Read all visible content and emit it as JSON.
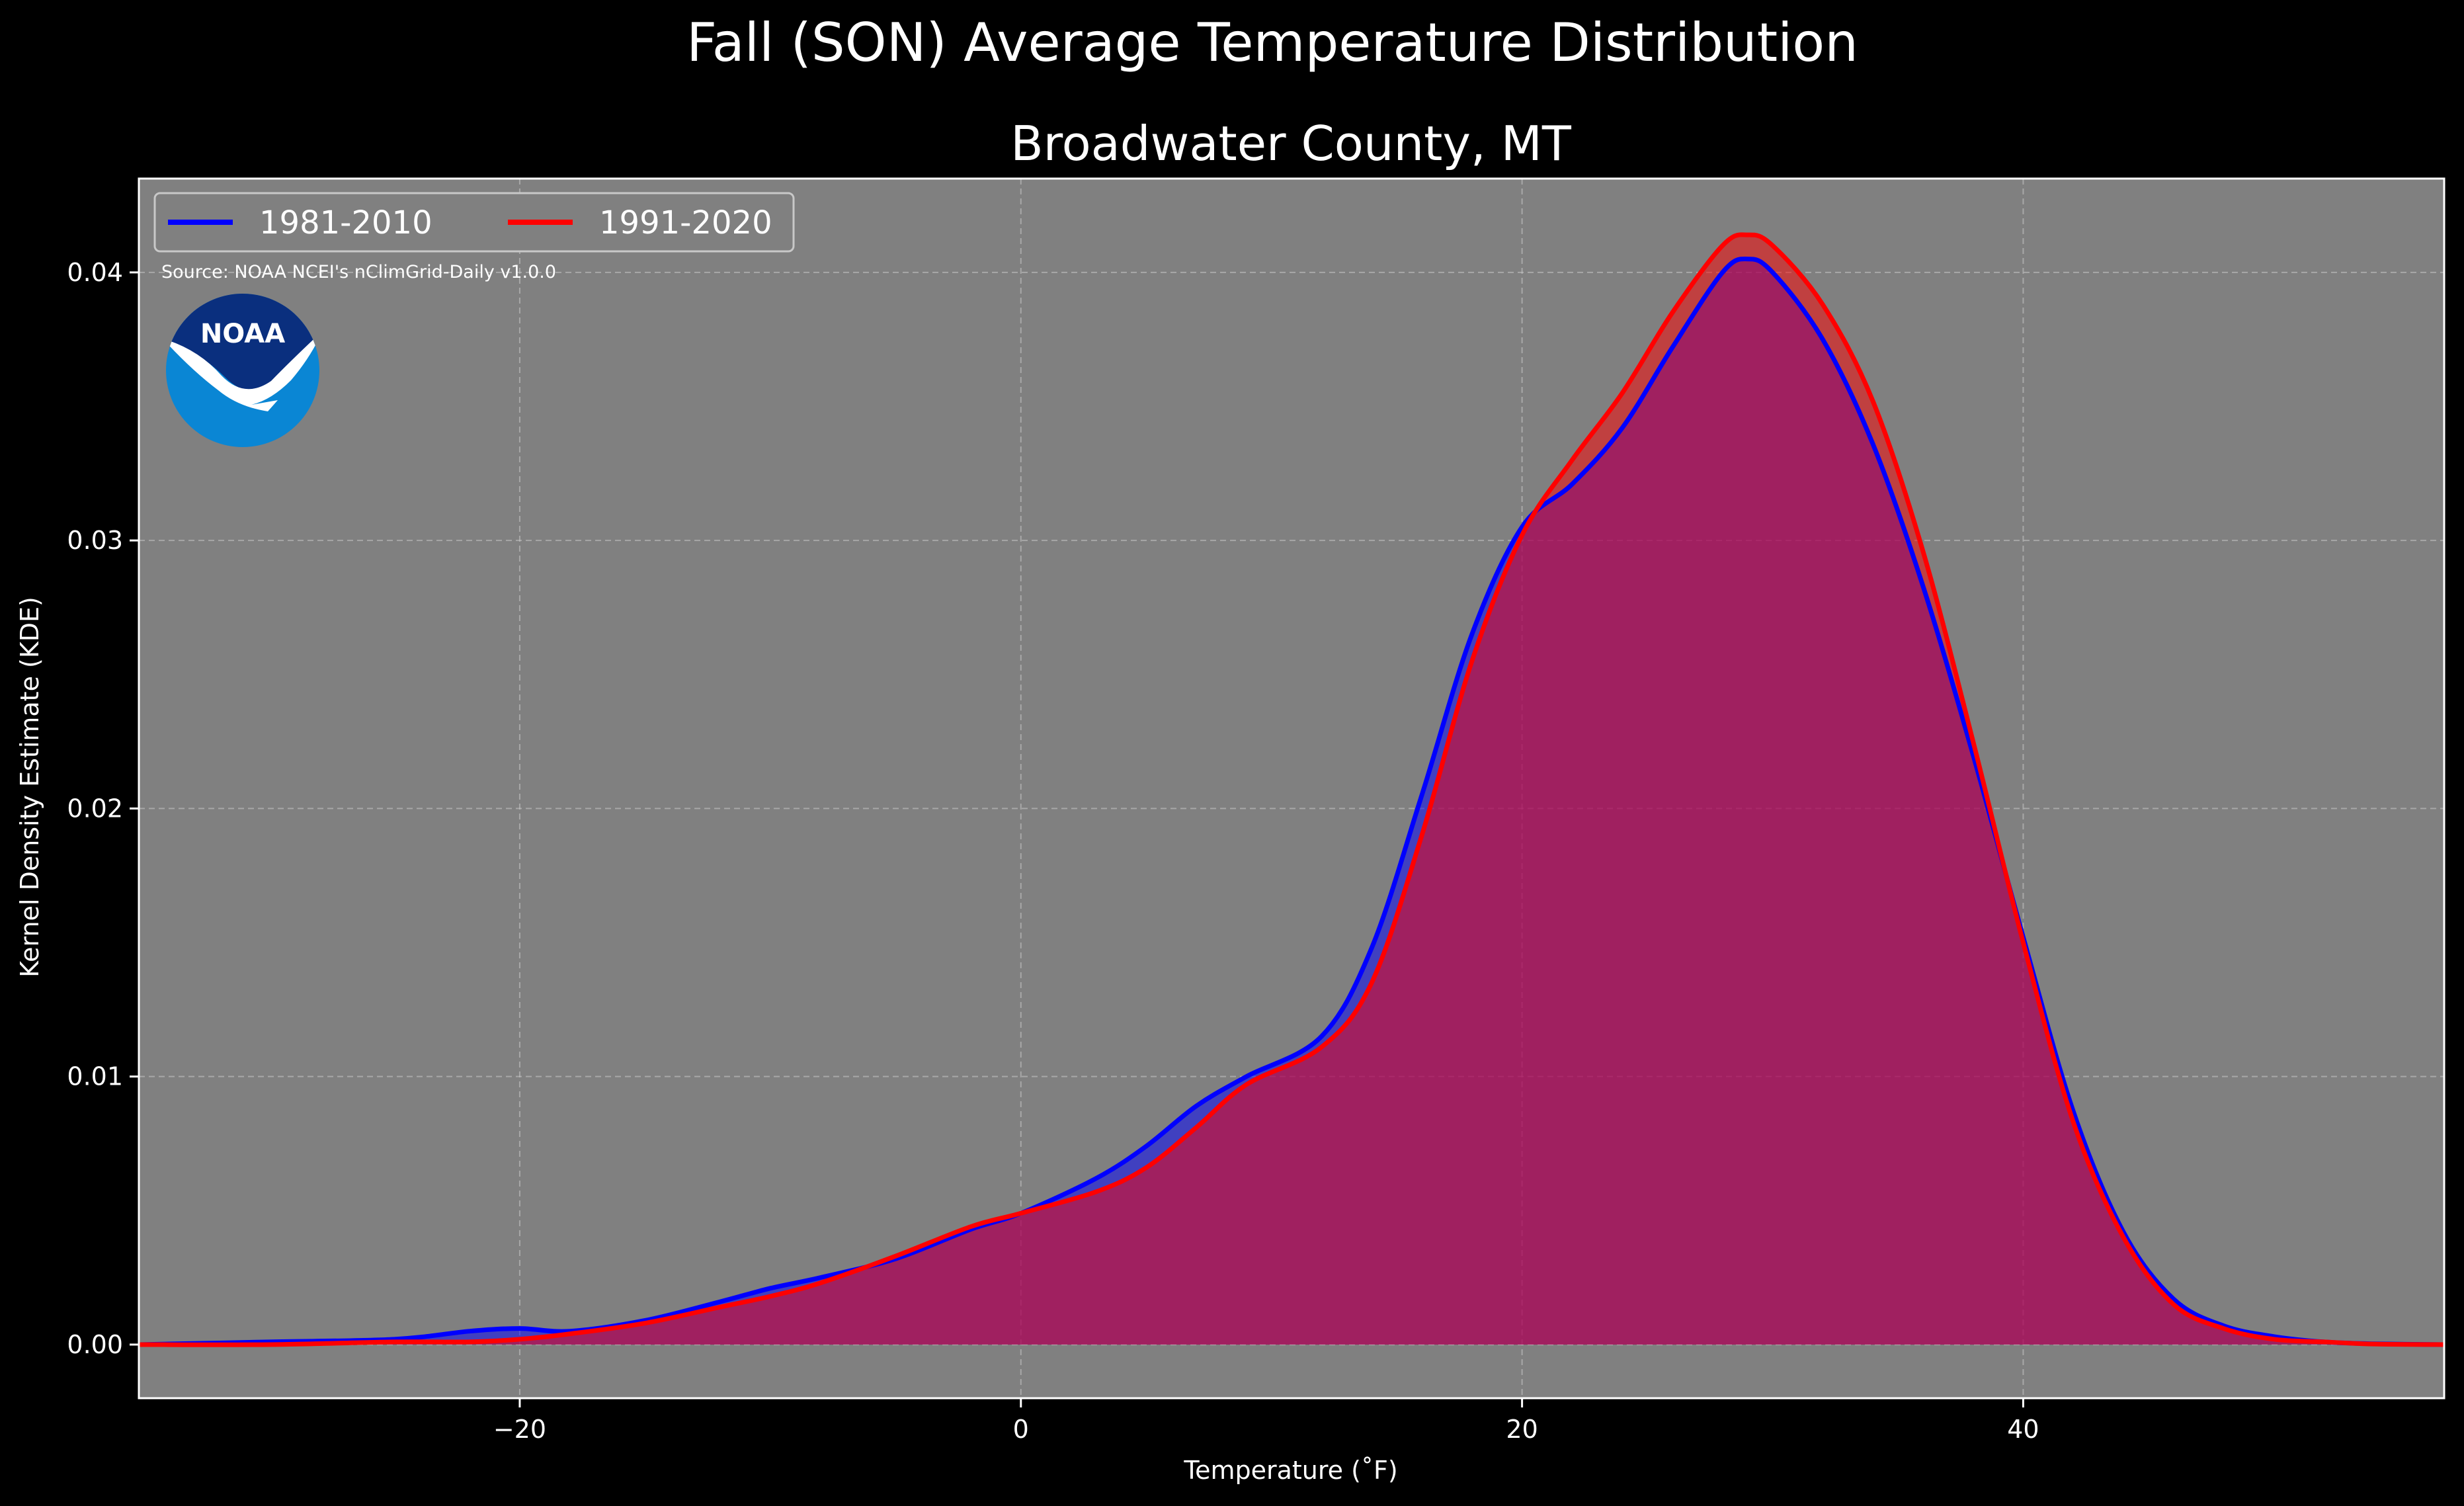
{
  "figure": {
    "suptitle": "Fall (SON) Average Temperature Distribution",
    "background": "#000000",
    "plot_background": "#808080"
  },
  "source_note": "Source: NOAA NCEI's nClimGrid-Daily v1.0.0",
  "logo": {
    "text": "NOAA",
    "icon": "noaa-logo-icon",
    "colors": {
      "top": "#0a2f7e",
      "bottom": "#0a86d4",
      "bird": "#ffffff"
    }
  },
  "chart_data": {
    "type": "area",
    "title": "Broadwater County, MT",
    "xlabel": "Temperature ($^\\circ$F)",
    "xlabel_display": "Temperature (˚F)",
    "ylabel": "Kernel Density Estimate (KDE)",
    "xlim": [
      -35.2,
      56.8
    ],
    "ylim": [
      -0.002,
      0.0435
    ],
    "xticks": [
      -20,
      0,
      20,
      40
    ],
    "xtick_labels": [
      "−20",
      "0",
      "20",
      "40"
    ],
    "yticks": [
      0.0,
      0.01,
      0.02,
      0.03,
      0.04
    ],
    "ytick_labels": [
      "0.00",
      "0.01",
      "0.02",
      "0.03",
      "0.04"
    ],
    "grid": true,
    "legend": {
      "location": "top-left",
      "ncol": 2
    },
    "series": [
      {
        "name": "1981-2010",
        "color": "#0000ff",
        "fill_opacity": 0.5,
        "x": [
          -35.2,
          -30,
          -25,
          -22,
          -20,
          -18,
          -15,
          -12,
          -10,
          -8,
          -5,
          -2,
          0,
          3,
          5,
          7,
          9,
          12,
          14,
          16,
          18,
          20,
          22,
          24,
          26,
          28,
          29,
          30,
          32,
          34,
          36,
          38,
          40,
          42,
          44,
          46,
          48,
          50,
          52,
          54,
          56.8
        ],
        "y": [
          0.0,
          0.0001,
          0.0002,
          0.0005,
          0.0006,
          0.0005,
          0.0009,
          0.0016,
          0.0021,
          0.0025,
          0.0032,
          0.0043,
          0.0049,
          0.0062,
          0.0074,
          0.0089,
          0.01,
          0.0115,
          0.0148,
          0.0205,
          0.0265,
          0.0305,
          0.0321,
          0.0342,
          0.0372,
          0.04,
          0.0405,
          0.04,
          0.0375,
          0.0336,
          0.0283,
          0.022,
          0.0152,
          0.0087,
          0.0042,
          0.0017,
          0.0007,
          0.0003,
          0.0001,
          3e-05,
          0.0
        ]
      },
      {
        "name": "1991-2020",
        "color": "#ff0000",
        "fill_opacity": 0.5,
        "x": [
          -35.2,
          -30,
          -25,
          -22,
          -20,
          -18,
          -15,
          -12,
          -10,
          -8,
          -5,
          -2,
          0,
          3,
          5,
          7,
          9,
          12,
          14,
          16,
          18,
          20,
          22,
          24,
          26,
          28,
          29,
          30,
          32,
          34,
          36,
          38,
          40,
          42,
          44,
          46,
          48,
          50,
          52,
          54,
          56.8
        ],
        "y": [
          0.0,
          0.0,
          0.0001,
          0.0001,
          0.0002,
          0.0004,
          0.0008,
          0.0014,
          0.0018,
          0.0023,
          0.0033,
          0.0044,
          0.0049,
          0.0057,
          0.0066,
          0.0081,
          0.0097,
          0.0111,
          0.0135,
          0.019,
          0.0255,
          0.0302,
          0.033,
          0.0355,
          0.0385,
          0.041,
          0.0414,
          0.041,
          0.0388,
          0.0352,
          0.0296,
          0.0225,
          0.015,
          0.0083,
          0.004,
          0.0015,
          0.0006,
          0.0002,
          0.0001,
          2e-05,
          0.0
        ]
      }
    ]
  }
}
